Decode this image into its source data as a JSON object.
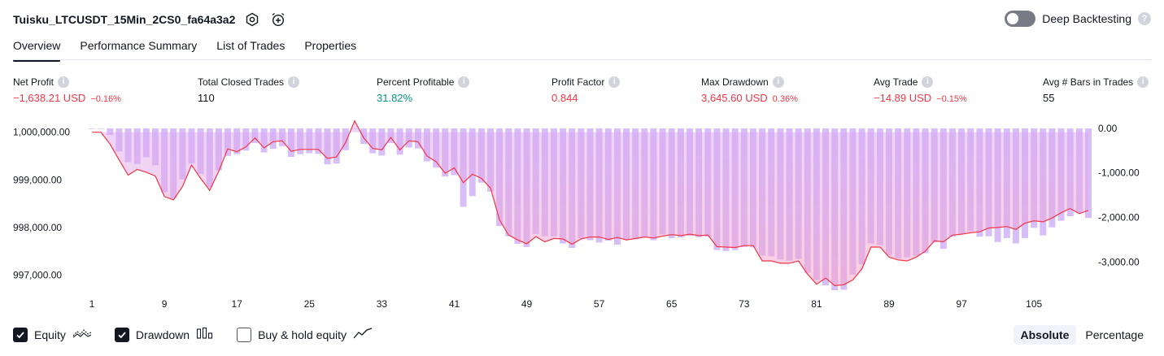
{
  "header": {
    "title": "Tuisku_LTCUSDT_15Min_2CS0_fa64a3a2",
    "icons": [
      "settings-icon",
      "alarm-add-icon"
    ],
    "deep_backtesting_label": "Deep Backtesting",
    "deep_backtesting_enabled": false,
    "help_glyph": "?"
  },
  "tabs": [
    {
      "label": "Overview",
      "active": true
    },
    {
      "label": "Performance Summary",
      "active": false
    },
    {
      "label": "List of Trades",
      "active": false
    },
    {
      "label": "Properties",
      "active": false
    }
  ],
  "stats": {
    "net_profit": {
      "label": "Net Profit",
      "value": "−1,638.21 USD",
      "sub": "−0.16%"
    },
    "total_closed_trades": {
      "label": "Total Closed Trades",
      "value": "110"
    },
    "percent_profitable": {
      "label": "Percent Profitable",
      "value": "31.82%"
    },
    "profit_factor": {
      "label": "Profit Factor",
      "value": "0.844"
    },
    "max_drawdown": {
      "label": "Max Drawdown",
      "value": "3,645.60 USD",
      "sub": "0.36%"
    },
    "avg_trade": {
      "label": "Avg Trade",
      "value": "−14.89 USD",
      "sub": "−0.15%"
    },
    "avg_bars": {
      "label": "Avg # Bars in Trades",
      "value": "55"
    }
  },
  "chart_data": {
    "type": "area",
    "x_ticks": [
      "1",
      "9",
      "17",
      "25",
      "33",
      "41",
      "49",
      "57",
      "65",
      "73",
      "81",
      "89",
      "97",
      "105"
    ],
    "y_left": {
      "ticks": [
        "1,000,000.00",
        "999,000.00",
        "998,000.00",
        "997,000.00"
      ],
      "ylim": [
        996600,
        1000250
      ]
    },
    "y_right": {
      "ticks": [
        "0.00",
        "-1,000.00",
        "-2,000.00",
        "-3,000.00"
      ],
      "ylim": [
        -3720,
        180
      ]
    },
    "series": [
      {
        "name": "Equity",
        "color": "#f23645",
        "fill": "#f7a1c4",
        "values": [
          1000000,
          1000000,
          999750,
          999420,
          999100,
          999220,
          999160,
          999080,
          998650,
          998580,
          998860,
          999310,
          999030,
          998780,
          999180,
          999650,
          999590,
          999690,
          999880,
          999670,
          999800,
          999820,
          999600,
          999640,
          999640,
          999640,
          999450,
          999480,
          999780,
          1000240,
          999880,
          999660,
          999630,
          999890,
          999630,
          999820,
          999800,
          999500,
          999380,
          999140,
          999250,
          998940,
          999120,
          999030,
          998830,
          998160,
          997840,
          997740,
          997660,
          997810,
          997700,
          997770,
          997760,
          997650,
          997760,
          997800,
          997800,
          997750,
          997790,
          997740,
          997770,
          997800,
          997780,
          997820,
          997850,
          997830,
          997860,
          997830,
          997840,
          997600,
          997590,
          997580,
          997620,
          997620,
          997300,
          997300,
          997250,
          997250,
          997300,
          997020,
          996810,
          996940,
          996780,
          996800,
          996900,
          997130,
          997590,
          997590,
          997380,
          997320,
          997300,
          997380,
          997500,
          997720,
          997700,
          997840,
          997860,
          997890,
          997910,
          997990,
          998000,
          998020,
          997960,
          998090,
          998140,
          998120,
          998200,
          998310,
          998400,
          998290,
          998360
        ]
      },
      {
        "name": "Drawdown",
        "color": "#c9a8f7",
        "values": [
          0,
          -10,
          -150,
          -520,
          -760,
          -800,
          -650,
          -830,
          -1430,
          -1570,
          -1150,
          -790,
          -1020,
          -1320,
          -940,
          -620,
          -580,
          -500,
          -330,
          -540,
          -460,
          -400,
          -640,
          -580,
          -560,
          -570,
          -810,
          -790,
          -490,
          0,
          -350,
          -560,
          -610,
          -330,
          -590,
          -430,
          -450,
          -740,
          -880,
          -1080,
          -1050,
          -1760,
          -1520,
          -1220,
          -1420,
          -2190,
          -2420,
          -2590,
          -2660,
          -2370,
          -2420,
          -2420,
          -2580,
          -2680,
          -2470,
          -2510,
          -2560,
          -2520,
          -2610,
          -2490,
          -2490,
          -2450,
          -2510,
          -2380,
          -2460,
          -2450,
          -2410,
          -2440,
          -2430,
          -2730,
          -2750,
          -2730,
          -2660,
          -2670,
          -2850,
          -2870,
          -2940,
          -2970,
          -2930,
          -3240,
          -3400,
          -3520,
          -3630,
          -3620,
          -3280,
          -3050,
          -2580,
          -2620,
          -2840,
          -2910,
          -2890,
          -2860,
          -2800,
          -2560,
          -2700,
          -2430,
          -2370,
          -2310,
          -2430,
          -2420,
          -2550,
          -2460,
          -2580,
          -2460,
          -2230,
          -2400,
          -2220,
          -2070,
          -1970,
          -1890,
          -2010
        ]
      }
    ],
    "buy_hold": {
      "name": "Buy & hold equity",
      "visible": false
    },
    "grid": false
  },
  "footer": {
    "equity_label": "Equity",
    "drawdown_label": "Drawdown",
    "buy_hold_label": "Buy & hold equity",
    "equity_checked": true,
    "drawdown_checked": true,
    "buy_hold_checked": false
  },
  "mode": {
    "absolute_label": "Absolute",
    "percentage_label": "Percentage",
    "active": "Absolute"
  }
}
